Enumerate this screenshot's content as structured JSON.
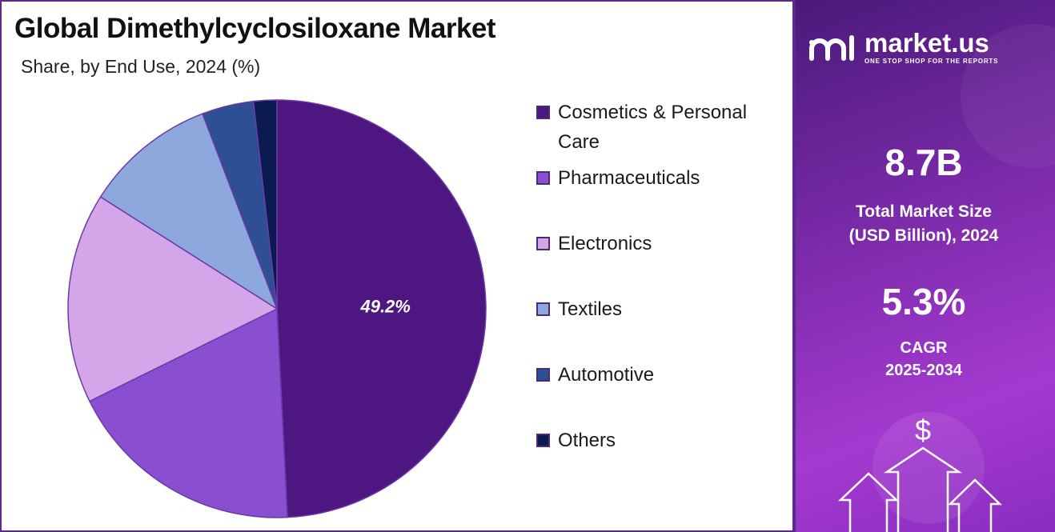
{
  "title": "Global Dimethylcyclosiloxane Market",
  "subtitle": "Share, by End Use, 2024 (%)",
  "chart_data": {
    "type": "pie",
    "categories": [
      "Cosmetics & Personal Care",
      "Pharmaceuticals",
      "Electronics",
      "Textiles",
      "Automotive",
      "Others"
    ],
    "values": [
      49.2,
      18.5,
      16.3,
      10.2,
      4.0,
      1.8
    ],
    "colors": [
      "#4e1680",
      "#8a4fd0",
      "#d3a6ea",
      "#8da8dc",
      "#2e4f93",
      "#0c1a52"
    ],
    "data_labels": [
      {
        "category": "Cosmetics & Personal Care",
        "text": "49.2%"
      }
    ],
    "legend_position": "right",
    "start_angle_deg": 0,
    "direction": "clockwise"
  },
  "legend": {
    "items": [
      {
        "label": "Cosmetics & Personal Care",
        "color": "#4e1680"
      },
      {
        "label": "Pharmaceuticals",
        "color": "#8a4fd0"
      },
      {
        "label": "Electronics",
        "color": "#d3a6ea"
      },
      {
        "label": "Textiles",
        "color": "#8da8dc"
      },
      {
        "label": "Automotive",
        "color": "#2e4f93"
      },
      {
        "label": "Others",
        "color": "#0c1a52"
      }
    ]
  },
  "sidebar": {
    "brand_name": "market.us",
    "brand_tagline": "ONE STOP SHOP FOR THE REPORTS",
    "market_size_value": "8.7B",
    "market_size_label_line1": "Total Market Size",
    "market_size_label_line2": "(USD Billion), 2024",
    "cagr_value": "5.3%",
    "cagr_label_line1": "CAGR",
    "cagr_label_line2": "2025-2034",
    "icons": [
      "dollar-icon",
      "arrow-up-icon"
    ]
  }
}
